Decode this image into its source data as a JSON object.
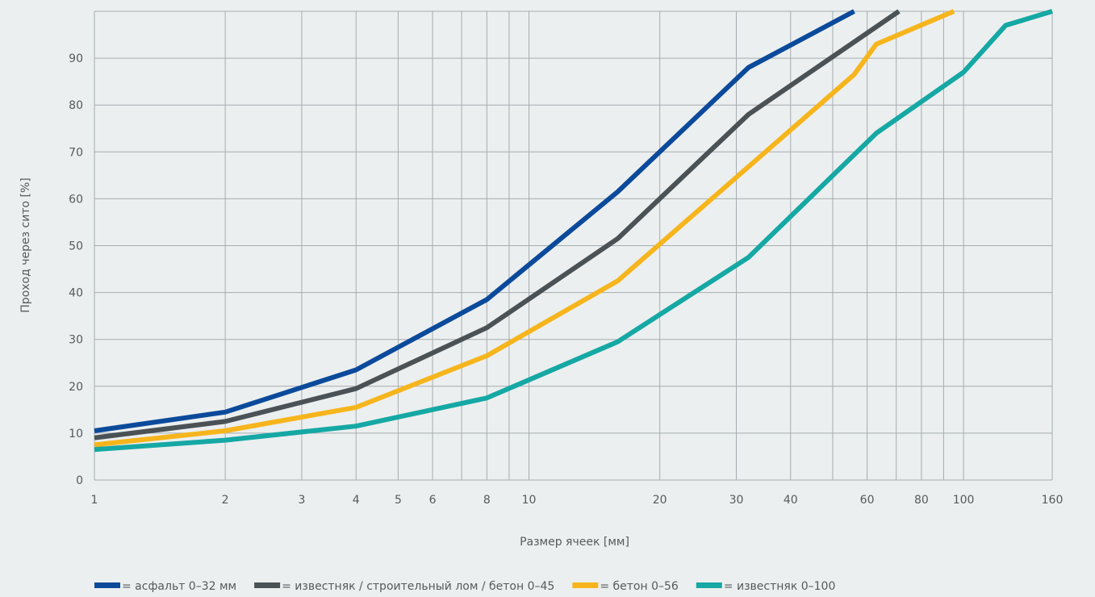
{
  "chart_data": {
    "type": "line",
    "xscale": "log",
    "xlim": [
      1,
      160
    ],
    "ylim": [
      0,
      100
    ],
    "xlabel": "Размер ячеек [мм]",
    "ylabel": "Проход через сито [%]",
    "grid": true,
    "legend_position": "bottom",
    "xgrid": [
      1,
      2,
      3,
      4,
      5,
      6,
      7,
      8,
      9,
      10,
      20,
      30,
      40,
      50,
      60,
      70,
      80,
      90,
      100,
      160
    ],
    "xticks": [
      1,
      2,
      3,
      4,
      5,
      6,
      8,
      10,
      20,
      30,
      40,
      60,
      80,
      100,
      160
    ],
    "yticks": [
      0,
      10,
      20,
      30,
      40,
      50,
      60,
      70,
      80,
      90
    ],
    "series": [
      {
        "name": "= асфальт 0–32 мм",
        "color": "#0b4a9b",
        "x": [
          1,
          2,
          4,
          8,
          16,
          32,
          56
        ],
        "y": [
          10.5,
          14.5,
          23.5,
          38.5,
          61.5,
          88,
          100
        ]
      },
      {
        "name": "= известняк / строительный лом / бетон 0–45",
        "color": "#4a5256",
        "x": [
          1,
          2,
          4,
          8,
          16,
          32,
          71
        ],
        "y": [
          9,
          12.5,
          19.5,
          32.5,
          51.5,
          78,
          100
        ]
      },
      {
        "name": "= бетон 0–56",
        "color": "#f6b51c",
        "x": [
          1,
          2,
          4,
          8,
          16,
          56,
          63,
          95
        ],
        "y": [
          7.5,
          10.5,
          15.5,
          26.5,
          42.5,
          86.5,
          93,
          100
        ]
      },
      {
        "name": "= известняк 0–100",
        "color": "#15a8a4",
        "x": [
          1,
          2,
          4,
          8,
          16,
          32,
          63,
          100,
          125,
          160
        ],
        "y": [
          6.5,
          8.5,
          11.5,
          17.5,
          29.5,
          47.5,
          74,
          87,
          97,
          100
        ]
      }
    ]
  }
}
